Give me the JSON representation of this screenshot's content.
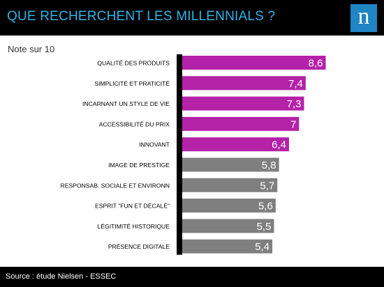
{
  "header": {
    "title": "QUE RECHERCHENT LES MILLENNIALS ?",
    "logo": "n",
    "background": "#000000",
    "title_color": "#2fb3e8",
    "logo_color": "#1f85c4"
  },
  "subtitle": "Note sur 10",
  "footer": {
    "source": "Source : étude Nielsen - ESSEC"
  },
  "colors": {
    "highlight": "#b422a8",
    "neutral": "#7f7f7f",
    "axis": "#000000"
  },
  "chart_data": {
    "type": "bar",
    "orientation": "horizontal",
    "title": "QUE RECHERCHENT LES MILLENNIALS ?",
    "subtitle": "Note sur 10",
    "categories": [
      "QUALITÉ DES PRODUITS",
      "SIMPLICITÉ ET PRATICITÉ",
      "INCARNANT UN STYLE DE VIE",
      "ACCESSIBILITÉ DU PRIX",
      "INNOVANT",
      "IMAGE DE PRESTIGE",
      "RESPONSAB. SOCIALE ET ENVIRONN",
      "ESPRIT \"FUN ET DÉCALÉ\"",
      "LÉGITIMITÉ HISTORIQUE",
      "PRÉSENCE DIGITALE"
    ],
    "values": [
      8.6,
      7.4,
      7.3,
      7,
      6.4,
      5.8,
      5.7,
      5.6,
      5.5,
      5.4
    ],
    "value_labels": [
      "8,6",
      "7,4",
      "7,3",
      "7",
      "6,4",
      "5,8",
      "5,7",
      "5,6",
      "5,5",
      "5,4"
    ],
    "highlighted": [
      true,
      true,
      true,
      true,
      true,
      false,
      false,
      false,
      false,
      false
    ],
    "xlim": [
      0,
      10
    ],
    "grid": false,
    "legend": "none"
  }
}
